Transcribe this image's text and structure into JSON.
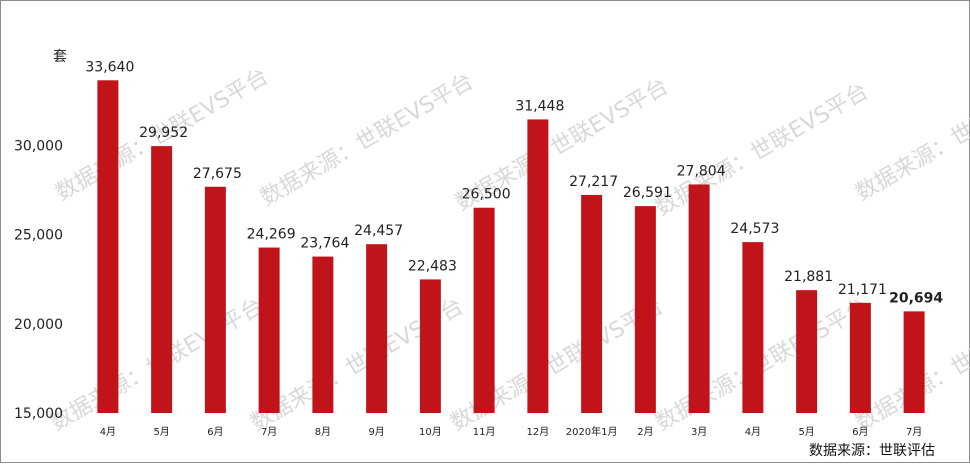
{
  "chart_data": {
    "type": "bar",
    "unit_label": "套",
    "categories": [
      "4月",
      "5月",
      "6月",
      "7月",
      "8月",
      "9月",
      "10月",
      "11月",
      "12月",
      "2020年1月",
      "2月",
      "3月",
      "4月",
      "5月",
      "6月",
      "7月"
    ],
    "values": [
      33640,
      29952,
      27675,
      24269,
      23764,
      24457,
      22483,
      26500,
      31448,
      27217,
      26591,
      27804,
      24573,
      21881,
      21171,
      20694
    ],
    "data_labels": [
      "33,640",
      "29,952",
      "27,675",
      "24,269",
      "23,764",
      "24,457",
      "22,483",
      "26,500",
      "31,448",
      "27,217",
      "26,591",
      "27,804",
      "24,573",
      "21,881",
      "21,171",
      "20,694"
    ],
    "highlight_index": 15,
    "ylim": [
      15000,
      35000
    ],
    "yticks": [
      15000,
      20000,
      25000,
      30000
    ],
    "ytick_labels": [
      "15,000",
      "20,000",
      "25,000",
      "30,000"
    ],
    "bar_color": "#c0141a",
    "grid": false,
    "source": "数据来源：世联评估",
    "watermark": "数据来源：世联EVS平台"
  }
}
